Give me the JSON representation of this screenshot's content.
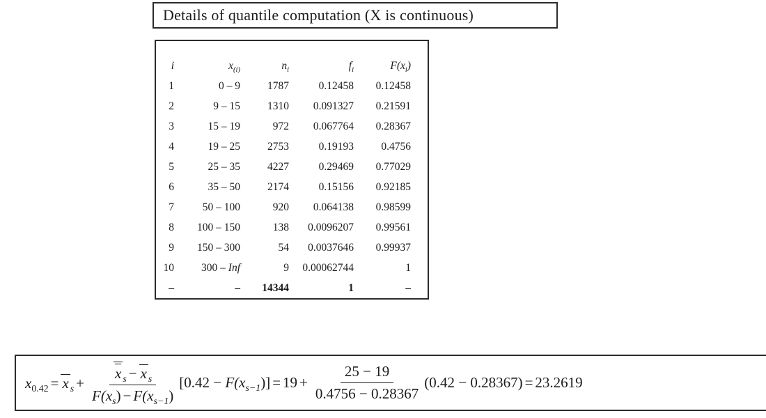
{
  "colors": {
    "ink": "#1c1c1c",
    "border": "#2b2b2b",
    "background": "#ffffff"
  },
  "title": "Details of quantile computation (X is continuous)",
  "table": {
    "headers": [
      {
        "pre": "i",
        "sub": "",
        "post": ""
      },
      {
        "pre": "x",
        "sub": "(i)",
        "post": ""
      },
      {
        "pre": "n",
        "sub": "i",
        "post": ""
      },
      {
        "pre": "f",
        "sub": "i",
        "post": ""
      },
      {
        "pre": "F(x",
        "sub": "i",
        "post": ")"
      }
    ],
    "rows": [
      [
        "1",
        "0 – 9",
        "1787",
        "0.12458",
        "0.12458"
      ],
      [
        "2",
        "9 – 15",
        "1310",
        "0.091327",
        "0.21591"
      ],
      [
        "3",
        "15 – 19",
        "972",
        "0.067764",
        "0.28367"
      ],
      [
        "4",
        "19 – 25",
        "2753",
        "0.19193",
        "0.4756"
      ],
      [
        "5",
        "25 – 35",
        "4227",
        "0.29469",
        "0.77029"
      ],
      [
        "6",
        "35 – 50",
        "2174",
        "0.15156",
        "0.92185"
      ],
      [
        "7",
        "50 – 100",
        "920",
        "0.064138",
        "0.98599"
      ],
      [
        "8",
        "100 – 150",
        "138",
        "0.0096207",
        "0.99561"
      ],
      [
        "9",
        "150 – 300",
        "54",
        "0.0037646",
        "0.99937"
      ],
      [
        "10",
        [
          {
            "t": "300 – "
          },
          {
            "t": "Inf",
            "i": true
          }
        ],
        "9",
        "0.00062744",
        "1"
      ]
    ],
    "total_row": [
      "–",
      "–",
      "14344",
      "1",
      "–"
    ]
  },
  "formula": {
    "lhs_base": "x",
    "lhs_sub": "0.42",
    "eq": "=",
    "plus": "+",
    "minus": "−",
    "var_x": "x",
    "sub_s": "s",
    "sub_s1": "s−1",
    "func_F": "F(x",
    "paren_close": ")",
    "bracket_pre": "[0.42 −",
    "bracket_close": ")]",
    "mid_val": "19",
    "fracB_num": "25 − 19",
    "fracB_den": "0.4756 − 0.28367",
    "tail": "(0.42 − 0.28367)",
    "result": "23.2619"
  }
}
